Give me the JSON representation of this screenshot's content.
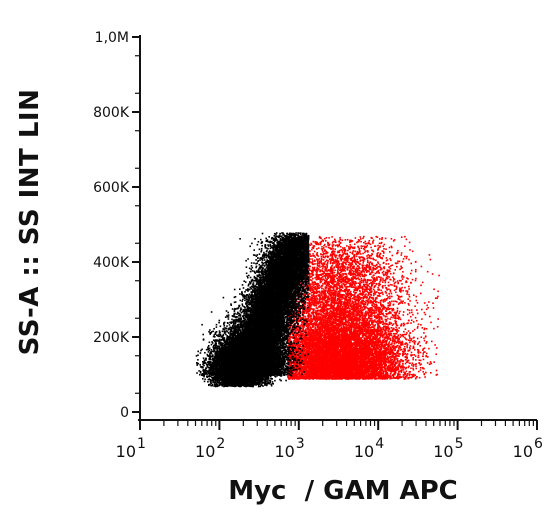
{
  "chart_data": {
    "type": "scatter",
    "title": "",
    "xlabel": "Myc  / GAM APC",
    "ylabel": "SS-A :: SS INT LIN",
    "x_scale": "log",
    "xlim": [
      10,
      1000000
    ],
    "x_ticks": [
      {
        "value": 10,
        "base": "10",
        "exp": "1"
      },
      {
        "value": 100,
        "base": "10",
        "exp": "2"
      },
      {
        "value": 1000,
        "base": "10",
        "exp": "3"
      },
      {
        "value": 10000,
        "base": "10",
        "exp": "4"
      },
      {
        "value": 100000,
        "base": "10",
        "exp": "5"
      },
      {
        "value": 1000000,
        "base": "10",
        "exp": "6"
      }
    ],
    "ylim": [
      0,
      1000000
    ],
    "y_ticks": [
      {
        "value": 0,
        "label": "0"
      },
      {
        "value": 200000,
        "label": "200K"
      },
      {
        "value": 400000,
        "label": "400K"
      },
      {
        "value": 600000,
        "label": "600K"
      },
      {
        "value": 800000,
        "label": "800K"
      },
      {
        "value": 1000000,
        "label": "1,0M"
      }
    ],
    "grid": false,
    "legend": "none",
    "series": [
      {
        "color": "#ff0000",
        "description_of_population": "positive population",
        "x_center": 3000,
        "y_center": 150000,
        "x_range": [
          700,
          60000
        ],
        "y_range": [
          70000,
          470000
        ]
      },
      {
        "color": "#000000",
        "description_of_population": "negative population",
        "x_center": 300,
        "y_center": 170000,
        "x_range": [
          50,
          1300
        ],
        "y_range": [
          70000,
          480000
        ]
      }
    ]
  }
}
